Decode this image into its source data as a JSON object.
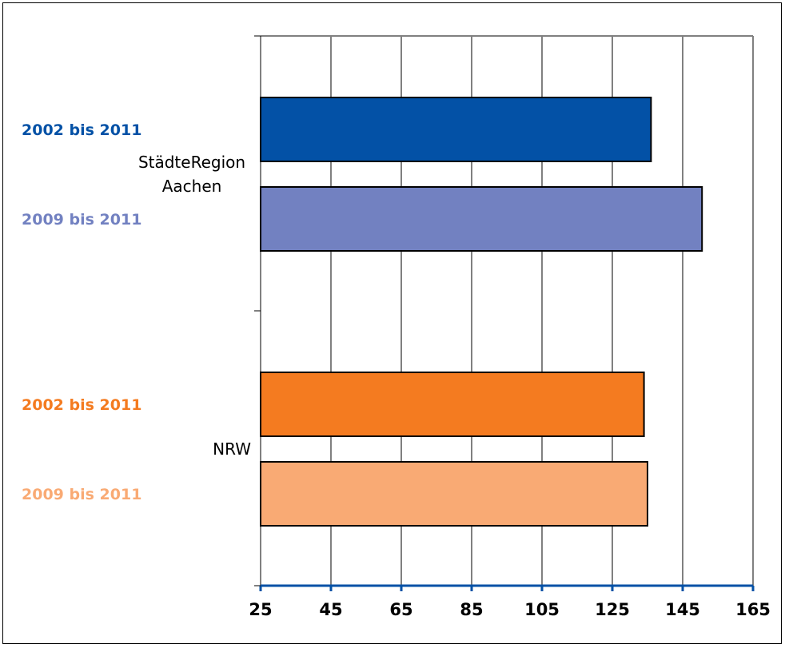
{
  "chart_data": {
    "type": "bar",
    "orientation": "horizontal",
    "title": "",
    "xlabel": "",
    "ylabel": "",
    "xlim": [
      25,
      165
    ],
    "x_ticks": [
      "25",
      "45",
      "65",
      "85",
      "105",
      "125",
      "145",
      "165"
    ],
    "grid": true,
    "groups": [
      {
        "label_lines": [
          "StädteRegion",
          "Aachen"
        ],
        "bars": [
          {
            "label": "2002 bis 2011",
            "value": 136,
            "color": "#0351A6",
            "label_color": "#0351A6"
          },
          {
            "label": "2009 bis 2011",
            "value": 150.5,
            "color": "#7281C1",
            "label_color": "#7281C1"
          }
        ]
      },
      {
        "label_lines": [
          "NRW"
        ],
        "bars": [
          {
            "label": "2002 bis 2011",
            "value": 134,
            "color": "#F47B20",
            "label_color": "#F47B20"
          },
          {
            "label": "2009 bis 2011",
            "value": 135,
            "color": "#F9AA74",
            "label_color": "#F9AA74"
          }
        ]
      }
    ],
    "colors": {
      "x_axis": "#0351A6",
      "grid": "#000000",
      "bar_border": "#000000"
    }
  }
}
